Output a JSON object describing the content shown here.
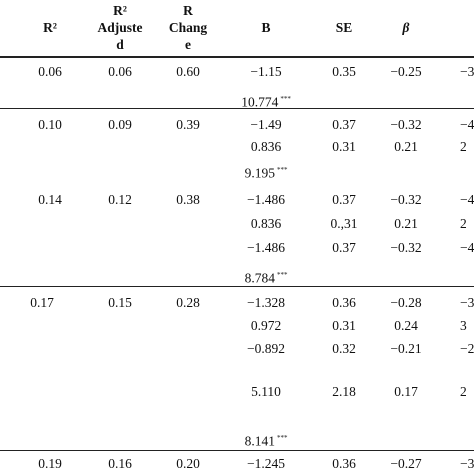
{
  "headers": {
    "r2": "R²",
    "r2_adjusted": [
      "R²",
      "Adjuste",
      "d"
    ],
    "r_change": [
      "R",
      "Chang",
      "e"
    ],
    "b": "B",
    "se": "SE",
    "beta": "β"
  },
  "models": [
    {
      "r2": "0.06",
      "r2_adj": "0.06",
      "r_change": "0.60",
      "rows": [
        {
          "b": "−1.15",
          "se": "0.35",
          "beta": "−0.25",
          "t": "−3"
        }
      ],
      "f": "10.774",
      "f_sig": "***"
    },
    {
      "r2": "0.10",
      "r2_adj": "0.09",
      "r_change": "0.39",
      "rows": [
        {
          "b": "−1.49",
          "se": "0.37",
          "beta": "−0.32",
          "t": "−4"
        },
        {
          "b": "0.836",
          "se": "0.31",
          "beta": "0.21",
          "t": "2"
        }
      ],
      "f": "9.195",
      "f_sig": "***"
    },
    {
      "r2": "0.14",
      "r2_adj": "0.12",
      "r_change": "0.38",
      "rows": [
        {
          "b": "−1.486",
          "se": "0.37",
          "beta": "−0.32",
          "t": "−4"
        },
        {
          "b": "0.836",
          "se": "0.,31",
          "beta": "0.21",
          "t": "2"
        },
        {
          "b": "−1.486",
          "se": "0.37",
          "beta": "−0.32",
          "t": "−4"
        }
      ],
      "f": "8.784",
      "f_sig": "***"
    },
    {
      "r2": "0.17",
      "r2_adj": "0.15",
      "r_change": "0.28",
      "rows": [
        {
          "b": "−1.328",
          "se": "0.36",
          "beta": "−0.28",
          "t": "−3"
        },
        {
          "b": "0.972",
          "se": "0.31",
          "beta": "0.24",
          "t": "3"
        },
        {
          "b": "−0.892",
          "se": "0.32",
          "beta": "−0.21",
          "t": "−2"
        },
        {
          "b": "5.110",
          "se": "2.18",
          "beta": "0.17",
          "t": "2"
        }
      ],
      "f": "8.141",
      "f_sig": "***"
    },
    {
      "r2": "0.19",
      "r2_adj": "0.16",
      "r_change": "0.20",
      "rows": [
        {
          "b": "−1.245",
          "se": "0.36",
          "beta": "−0.27",
          "t": "−3"
        }
      ]
    }
  ]
}
